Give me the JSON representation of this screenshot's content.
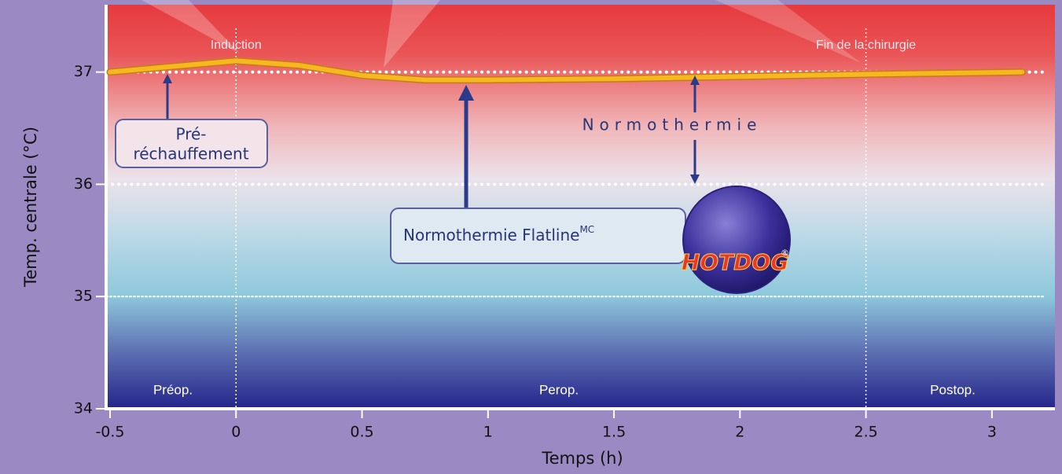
{
  "chart_data": {
    "type": "line",
    "x_label": "Temps (h)",
    "y_label": "Temp. centrale (°C)",
    "x": [
      -0.5,
      -0.25,
      0,
      0.25,
      0.5,
      0.75,
      1,
      1.5,
      2,
      2.5,
      3.12
    ],
    "series": [
      {
        "color": "#f5b820",
        "values": [
          37.0,
          37.05,
          37.1,
          37.06,
          36.97,
          36.93,
          36.93,
          36.94,
          36.96,
          36.98,
          37.0
        ]
      }
    ],
    "xlim": [
      -0.5,
      3.25
    ],
    "ylim": [
      34,
      37.6
    ],
    "xticks": [
      -0.5,
      0,
      0.5,
      1,
      1.5,
      2,
      2.5,
      3
    ],
    "yticks": [
      34,
      35,
      36,
      37
    ],
    "events": [
      {
        "label": "Induction",
        "x": 0
      },
      {
        "label": "Fin de la chirurgie",
        "x": 2.5
      }
    ],
    "phases": [
      "Préop.",
      "Perop.",
      "Postop."
    ]
  },
  "annotations": {
    "preheat": [
      "Pré-",
      "réchauffement"
    ],
    "normothermia": "Normothermie",
    "flatline": "Normothermie Flatline",
    "flatline_sup": "MC",
    "logo": "HOTDOG",
    "logo_mark": "®"
  }
}
